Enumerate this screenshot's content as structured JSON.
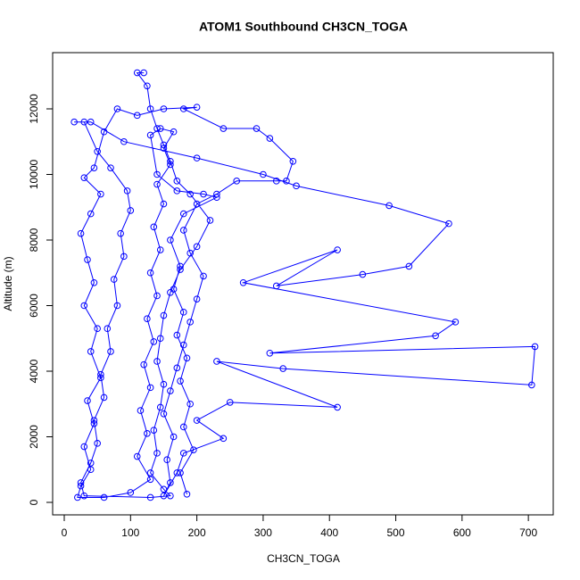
{
  "chart_data": {
    "type": "line",
    "title": "ATOM1 Southbound CH3CN_TOGA",
    "x_label": "CH3CN_TOGA",
    "y_label": "Altitude (m)",
    "color": "#0000ff",
    "markers": true,
    "x": [
      120,
      110,
      125,
      130,
      140,
      150,
      160,
      170,
      190,
      220,
      200,
      175,
      160,
      150,
      145,
      140,
      150,
      145,
      135,
      140,
      130,
      150,
      160,
      130,
      30,
      25,
      40,
      50,
      45,
      60,
      55,
      70,
      65,
      80,
      75,
      90,
      85,
      100,
      95,
      70,
      50,
      30,
      15,
      40,
      90,
      200,
      300,
      350,
      490,
      580,
      520,
      450,
      320,
      412,
      270,
      590,
      560,
      310,
      710,
      705,
      330,
      230,
      412,
      250,
      200,
      240,
      180,
      170,
      150,
      160,
      155,
      165,
      150,
      160,
      170,
      180,
      190,
      200,
      210,
      190,
      180,
      200,
      230,
      260,
      320,
      335,
      345,
      310,
      290,
      240,
      180,
      200,
      150,
      110,
      80,
      60,
      45,
      30,
      55,
      40,
      25,
      35,
      45,
      30,
      50,
      40,
      55,
      35,
      45,
      30,
      40,
      25,
      20,
      60,
      100,
      130,
      110,
      125,
      115,
      130,
      120,
      135,
      125,
      140,
      130,
      145,
      135,
      150,
      140,
      160,
      150,
      165,
      145,
      130,
      140,
      170,
      210,
      230,
      180,
      160,
      175,
      165,
      180,
      170,
      185,
      175,
      190,
      180,
      195,
      175,
      185
    ],
    "values": [
      13100,
      13100,
      12700,
      12000,
      11400,
      10900,
      10400,
      9800,
      9400,
      8600,
      7800,
      7100,
      6400,
      5700,
      5000,
      4300,
      3600,
      2900,
      2200,
      1500,
      900,
      400,
      200,
      150,
      200,
      600,
      1200,
      1800,
      2500,
      3200,
      3900,
      4600,
      5300,
      6000,
      6800,
      7500,
      8200,
      8900,
      9500,
      10200,
      10700,
      11600,
      11600,
      11600,
      11000,
      10500,
      10000,
      9650,
      9050,
      8500,
      7200,
      6950,
      6600,
      7700,
      6700,
      5500,
      5080,
      4550,
      4750,
      3580,
      4080,
      4300,
      2900,
      3050,
      2500,
      1950,
      1500,
      900,
      200,
      600,
      1300,
      2000,
      2700,
      3400,
      4100,
      4800,
      5500,
      6200,
      6900,
      7600,
      8300,
      9100,
      9400,
      9800,
      9800,
      9800,
      10400,
      11100,
      11400,
      11400,
      12000,
      12050,
      12000,
      11800,
      12000,
      11300,
      10200,
      9900,
      9400,
      8800,
      8200,
      7400,
      6700,
      6000,
      5300,
      4600,
      3800,
      3100,
      2400,
      1700,
      1000,
      500,
      150,
      150,
      300,
      700,
      1400,
      2100,
      2800,
      3500,
      4200,
      4900,
      5600,
      6300,
      7000,
      7700,
      8400,
      9100,
      9700,
      10300,
      10800,
      11300,
      11400,
      11200,
      10000,
      9500,
      9400,
      9300,
      8800,
      8000,
      7200,
      6500,
      5800,
      5100,
      4400,
      3700,
      3000,
      2300,
      1600,
      900,
      250
    ],
    "xlim": [
      -17.5,
      737.5
    ],
    "ylim": [
      -381,
      13714
    ],
    "xticks": [
      0,
      100,
      200,
      300,
      400,
      500,
      600,
      700
    ],
    "yticks": [
      0,
      2000,
      4000,
      6000,
      8000,
      10000,
      12000
    ]
  }
}
